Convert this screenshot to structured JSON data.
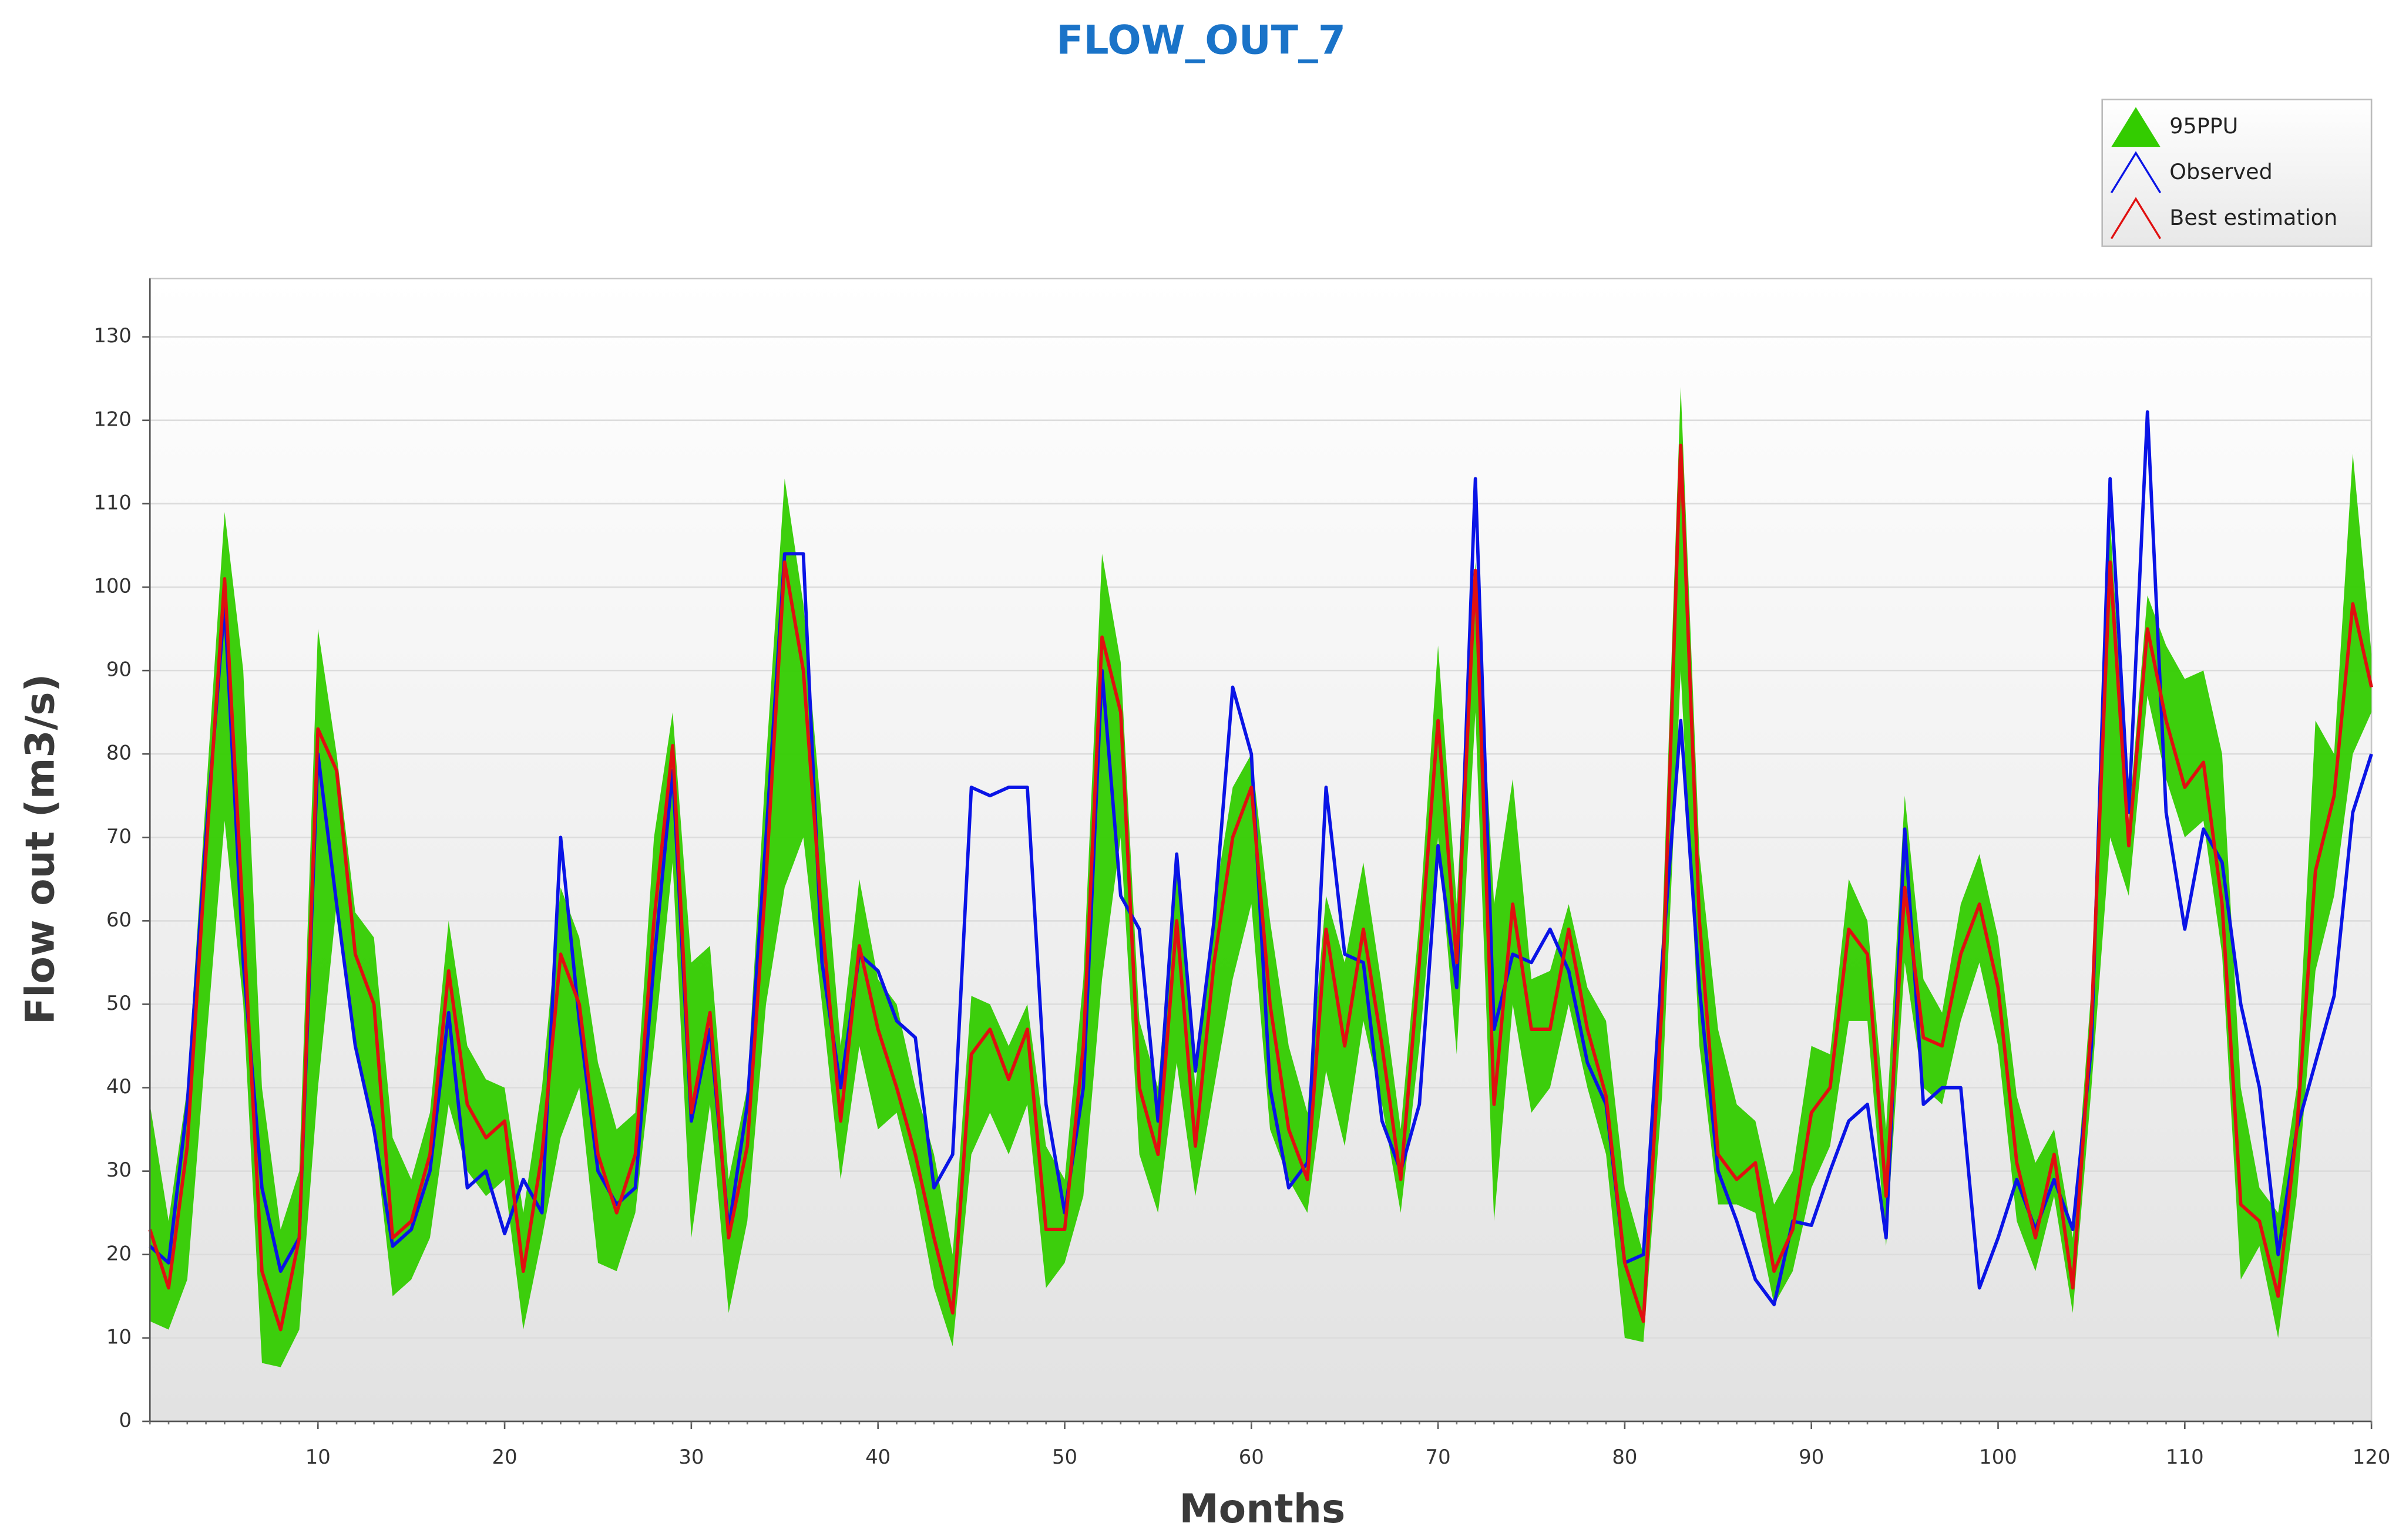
{
  "chart_data": {
    "type": "line",
    "title": "FLOW_OUT_7",
    "x_label": "Months",
    "y_label": "Flow out (m3/s)",
    "x": [
      1,
      2,
      3,
      4,
      5,
      6,
      7,
      8,
      9,
      10,
      11,
      12,
      13,
      14,
      15,
      16,
      17,
      18,
      19,
      20,
      21,
      22,
      23,
      24,
      25,
      26,
      27,
      28,
      29,
      30,
      31,
      32,
      33,
      34,
      35,
      36,
      37,
      38,
      39,
      40,
      41,
      42,
      43,
      44,
      45,
      46,
      47,
      48,
      49,
      50,
      51,
      52,
      53,
      54,
      55,
      56,
      57,
      58,
      59,
      60,
      61,
      62,
      63,
      64,
      65,
      66,
      67,
      68,
      69,
      70,
      71,
      72,
      73,
      74,
      75,
      76,
      77,
      78,
      79,
      80,
      81,
      82,
      83,
      84,
      85,
      86,
      87,
      88,
      89,
      90,
      91,
      92,
      93,
      94,
      95,
      96,
      97,
      98,
      99,
      100,
      101,
      102,
      103,
      104,
      105,
      106,
      107,
      108,
      109,
      110,
      111,
      112,
      113,
      114,
      115,
      116,
      117,
      118,
      119,
      120
    ],
    "xlim": [
      1,
      120
    ],
    "xticks": [
      10,
      20,
      30,
      40,
      50,
      60,
      70,
      80,
      90,
      100,
      110,
      120
    ],
    "ylim": [
      0,
      137
    ],
    "yticks": [
      0,
      10,
      20,
      30,
      40,
      50,
      60,
      70,
      80,
      90,
      100,
      110,
      120,
      130
    ],
    "grid": true,
    "legend": "top-right",
    "band": {
      "name": "95PPU",
      "color": "#33cc00",
      "lower": [
        12,
        11,
        17,
        45,
        72,
        50,
        7,
        6.5,
        11,
        40,
        62,
        45,
        35,
        15,
        17,
        22,
        38,
        30,
        27,
        29,
        11,
        22,
        34,
        40,
        19,
        18,
        25,
        45,
        67,
        22,
        38,
        13,
        24,
        50,
        64,
        70,
        50,
        29,
        45,
        35,
        37,
        28,
        16,
        9,
        32,
        37,
        32,
        38,
        16,
        19,
        27,
        53,
        70,
        32,
        25,
        43,
        27,
        40,
        53,
        62,
        35,
        29,
        25,
        42,
        33,
        48,
        38,
        25,
        45,
        70,
        44,
        85,
        24,
        50,
        37,
        40,
        50,
        40,
        32,
        10,
        9.5,
        39,
        90,
        45,
        26,
        26,
        25,
        14,
        18,
        28,
        33,
        48,
        48,
        21,
        55,
        40,
        38,
        48,
        55,
        45,
        24,
        18,
        27,
        13,
        40,
        70,
        63,
        87,
        77,
        70,
        72,
        56,
        17,
        21,
        10,
        27,
        54,
        63,
        80,
        85
      ],
      "upper": [
        38,
        24,
        40,
        75,
        109,
        90,
        40,
        23,
        30,
        95,
        80,
        61,
        58,
        34,
        29,
        37,
        60,
        45,
        41,
        40,
        25,
        40,
        64,
        58,
        43,
        35,
        37,
        70,
        85,
        55,
        57,
        29,
        40,
        79,
        113,
        98,
        72,
        45,
        65,
        53,
        50,
        40,
        32,
        20,
        51,
        50,
        45,
        50,
        33,
        29,
        53,
        104,
        91,
        48,
        40,
        67,
        40,
        62,
        76,
        80,
        60,
        45,
        37,
        63,
        55,
        67,
        52,
        35,
        60,
        93,
        62,
        103,
        62,
        77,
        53,
        54,
        62,
        52,
        48,
        28,
        20,
        58,
        124,
        68,
        47,
        38,
        36,
        26,
        30,
        45,
        44,
        65,
        60,
        35,
        75,
        53,
        49,
        62,
        68,
        58,
        39,
        31,
        35,
        22,
        52,
        108,
        72,
        99,
        93,
        89,
        90,
        80,
        40,
        28,
        25,
        40,
        84,
        80,
        116,
        92
      ]
    },
    "series": [
      {
        "name": "Observed",
        "color": "#0a14e6",
        "values": [
          21,
          19,
          38,
          70,
          98,
          55,
          28,
          18,
          22,
          80,
          62,
          45,
          35,
          21,
          23,
          30,
          49,
          28,
          30,
          22.5,
          29,
          25,
          70,
          48,
          30,
          26,
          28,
          55,
          78,
          36,
          47,
          23,
          38,
          70,
          104,
          104,
          55,
          40,
          56,
          54,
          48,
          46,
          28,
          32,
          76,
          75,
          76,
          76,
          38,
          25,
          40,
          90,
          63,
          59,
          36,
          68,
          42,
          60,
          88,
          80,
          40,
          28,
          31,
          76,
          56,
          55,
          36,
          30,
          38,
          69,
          52,
          113,
          47,
          56,
          55,
          59,
          54,
          43,
          38,
          19,
          20,
          55,
          84,
          52,
          30,
          24,
          17,
          14,
          24,
          23.5,
          30,
          36,
          38,
          22,
          71,
          38,
          40,
          40,
          16,
          22,
          29,
          23,
          29,
          23,
          45,
          113,
          73,
          121,
          73,
          59,
          71,
          67,
          50,
          40,
          20,
          35,
          43,
          51,
          73,
          80
        ]
      },
      {
        "name": "Best estimation",
        "color": "#e01010",
        "values": [
          23,
          16,
          33,
          68,
          101,
          60,
          18,
          11,
          22,
          83,
          78,
          56,
          50,
          22,
          24,
          32,
          54,
          38,
          34,
          36,
          18,
          32,
          56,
          50,
          32,
          25,
          32,
          60,
          81,
          37,
          49,
          22,
          33,
          65,
          103,
          90,
          60,
          36,
          57,
          47,
          40,
          32,
          22,
          13,
          44,
          47,
          41,
          47,
          23,
          23,
          45,
          94,
          85,
          40,
          32,
          60,
          33,
          55,
          70,
          76,
          50,
          35,
          29,
          59,
          45,
          59,
          45,
          29,
          55,
          84,
          55,
          102,
          38,
          62,
          47,
          47,
          59,
          47,
          39,
          19,
          12,
          50,
          117,
          60,
          32,
          29,
          31,
          18,
          23,
          37,
          40,
          59,
          56,
          27,
          64,
          46,
          45,
          56,
          62,
          52,
          31,
          22,
          32,
          16,
          48,
          103,
          69,
          95,
          84,
          76,
          79,
          62,
          26,
          24,
          15,
          35,
          66,
          75,
          98,
          88
        ]
      }
    ]
  }
}
